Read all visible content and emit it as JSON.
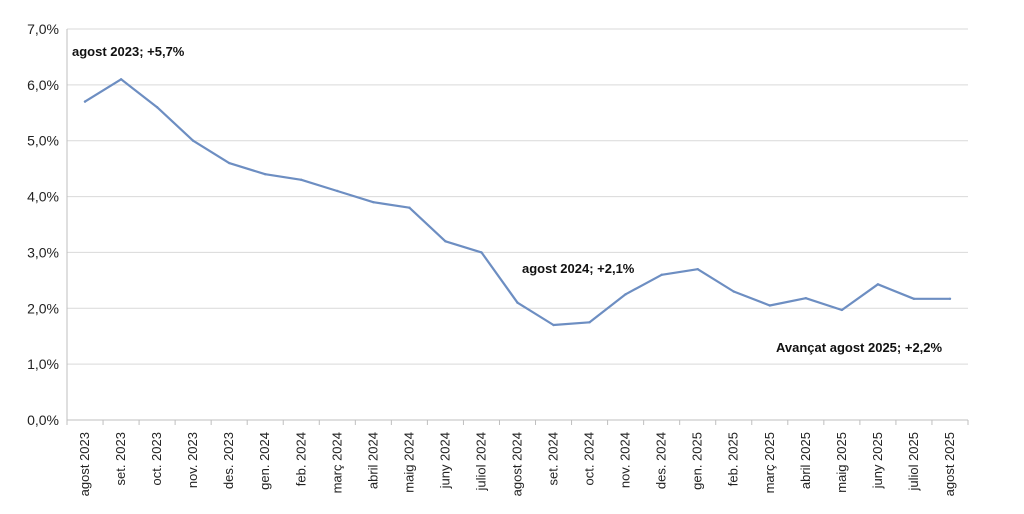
{
  "chart_data": {
    "type": "line",
    "title": "",
    "xlabel": "",
    "ylabel": "",
    "ylim": [
      0,
      7
    ],
    "y_tick_labels": [
      "0,0%",
      "1,0%",
      "2,0%",
      "3,0%",
      "4,0%",
      "5,0%",
      "6,0%",
      "7,0%"
    ],
    "grid": true,
    "categories": [
      "agost 2023",
      "set. 2023",
      "oct. 2023",
      "nov. 2023",
      "des. 2023",
      "gen. 2024",
      "feb. 2024",
      "març 2024",
      "abril 2024",
      "maig 2024",
      "juny 2024",
      "juliol 2024",
      "agost 2024",
      "set. 2024",
      "oct. 2024",
      "nov. 2024",
      "des. 2024",
      "gen. 2025",
      "feb. 2025",
      "març 2025",
      "abril 2025",
      "maig 2025",
      "juny 2025",
      "juliol 2025",
      "agost 2025"
    ],
    "series": [
      {
        "values": [
          5.7,
          6.1,
          5.6,
          5.0,
          4.6,
          4.4,
          4.3,
          4.1,
          3.9,
          3.8,
          3.2,
          3.0,
          2.1,
          1.7,
          1.75,
          2.25,
          2.6,
          2.7,
          2.3,
          2.05,
          2.18,
          1.97,
          2.43,
          2.17,
          2.17
        ],
        "color": "#6d8ec2"
      }
    ],
    "annotations": [
      {
        "text": "agost 2023; +5,7%",
        "category": "agost 2023"
      },
      {
        "text": "agost 2024;  +2,1%",
        "category": "agost 2024"
      },
      {
        "text": "Avançat agost 2025; +2,2%",
        "category": "agost 2025"
      }
    ]
  }
}
